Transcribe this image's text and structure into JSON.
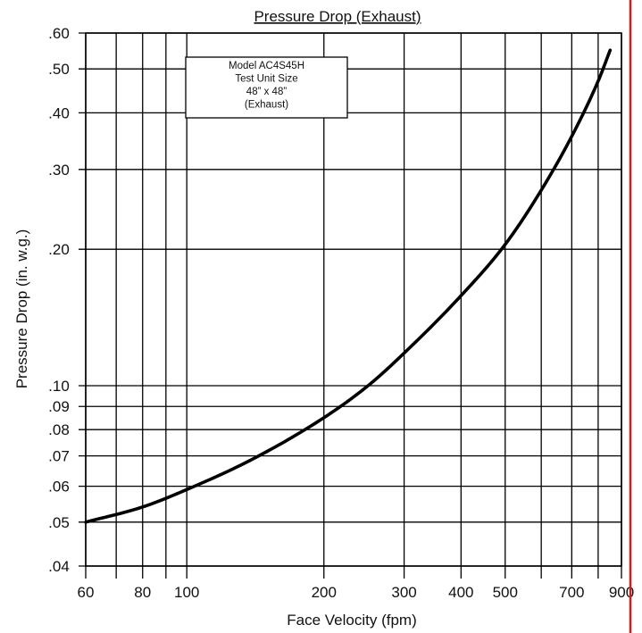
{
  "chart_data": {
    "type": "line",
    "title": "Pressure Drop (Exhaust)",
    "xlabel": "Face Velocity (fpm)",
    "ylabel": "Pressure Drop (in. w.g.)",
    "x_scale": "log",
    "y_scale": "log",
    "xlim": [
      60,
      900
    ],
    "ylim": [
      0.04,
      0.6
    ],
    "x_ticks": [
      60,
      70,
      80,
      90,
      100,
      200,
      300,
      400,
      500,
      600,
      700,
      800,
      900
    ],
    "x_tick_labels": [
      "60",
      "",
      "80",
      "",
      "100",
      "200",
      "300",
      "400",
      "500",
      "",
      "700",
      "",
      "900"
    ],
    "y_ticks": [
      0.04,
      0.05,
      0.06,
      0.07,
      0.08,
      0.09,
      0.1,
      0.2,
      0.3,
      0.4,
      0.5,
      0.6
    ],
    "y_tick_labels": [
      ".04",
      ".05",
      ".06",
      ".07",
      ".08",
      ".09",
      ".10",
      ".20",
      ".30",
      ".40",
      ".50",
      ".60"
    ],
    "grid": true,
    "annotation": [
      "Model AC4S45H",
      "Test Unit Size",
      "48” x 48”",
      "(Exhaust)"
    ],
    "series": [
      {
        "x": [
          60,
          80,
          100,
          140,
          200,
          250,
          300,
          400,
          500,
          600,
          700,
          800,
          850
        ],
        "y": [
          0.05,
          0.054,
          0.059,
          0.069,
          0.085,
          0.1,
          0.118,
          0.158,
          0.205,
          0.27,
          0.355,
          0.47,
          0.55
        ]
      }
    ],
    "colors": {
      "curve": "#000000",
      "grid": "#000000",
      "right_rule": "#cc1f1f"
    }
  }
}
